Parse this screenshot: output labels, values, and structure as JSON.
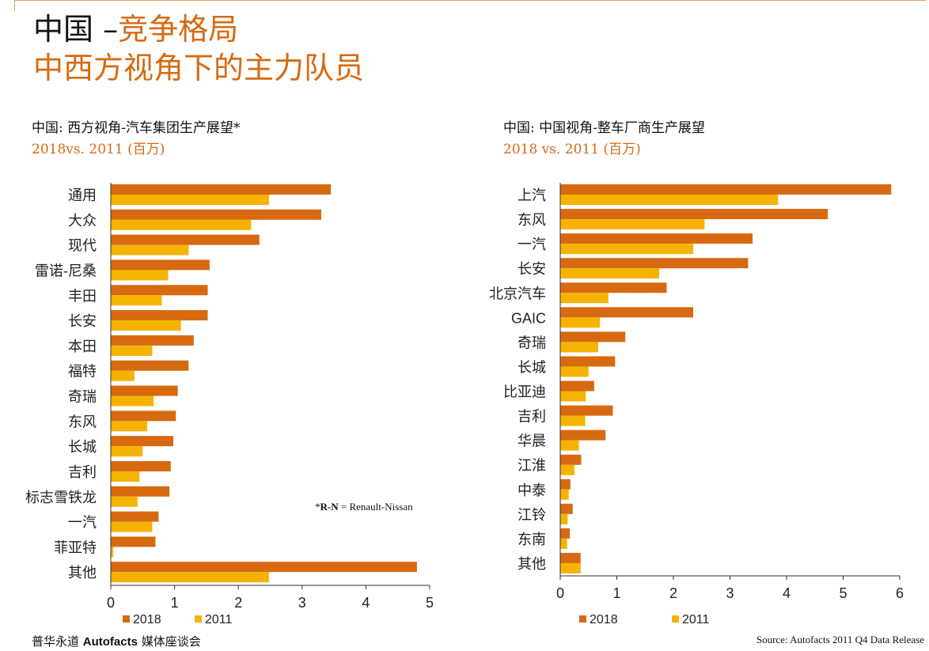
{
  "header": {
    "title_dark": "中国 –",
    "title_accent": "竞争格局",
    "subtitle": "中西方视角下的主力队员"
  },
  "colors": {
    "accent": "#d76a10",
    "series_2018": "#d76a10",
    "series_2011": "#f5b300"
  },
  "chart_data": [
    {
      "type": "bar",
      "orientation": "horizontal",
      "title": "中国: 西方视角-汽车集团生产展望*",
      "subtitle": "2018vs. 2011 (百万)",
      "categories": [
        "通用",
        "大众",
        "现代",
        "雷诺-尼桑",
        "丰田",
        "长安",
        "本田",
        "福特",
        "奇瑞",
        "东风",
        "长城",
        "吉利",
        "标志雪铁龙",
        "一汽",
        "菲亚特",
        "其他"
      ],
      "series": [
        {
          "name": "2018",
          "values": [
            3.45,
            3.3,
            2.33,
            1.55,
            1.52,
            1.52,
            1.3,
            1.22,
            1.05,
            1.02,
            0.98,
            0.94,
            0.92,
            0.75,
            0.7,
            4.8
          ]
        },
        {
          "name": "2011",
          "values": [
            2.48,
            2.2,
            1.22,
            0.9,
            0.8,
            1.1,
            0.65,
            0.37,
            0.67,
            0.57,
            0.5,
            0.45,
            0.42,
            0.65,
            0.04,
            2.48
          ]
        }
      ],
      "xlim": [
        0,
        5
      ],
      "xticks": [
        0,
        1,
        2,
        3,
        4,
        5
      ],
      "legend": "bottom",
      "note_marker": "*",
      "note_bold": "R-N",
      "note_rest": " = Renault-Nissan"
    },
    {
      "type": "bar",
      "orientation": "horizontal",
      "title": "中国: 中国视角-整车厂商生产展望",
      "subtitle": "2018 vs. 2011 (百万)",
      "categories": [
        "上汽",
        "东风",
        "一汽",
        "长安",
        "北京汽车",
        "GAIC",
        "奇瑞",
        "长城",
        "比亚迪",
        "吉利",
        "华晨",
        "江淮",
        "中泰",
        "江铃",
        "东南",
        "其他"
      ],
      "series": [
        {
          "name": "2018",
          "values": [
            5.85,
            4.73,
            3.4,
            3.32,
            1.88,
            2.35,
            1.15,
            0.97,
            0.6,
            0.93,
            0.8,
            0.37,
            0.18,
            0.22,
            0.17,
            0.36
          ]
        },
        {
          "name": "2011",
          "values": [
            3.85,
            2.55,
            2.35,
            1.75,
            0.85,
            0.7,
            0.67,
            0.5,
            0.45,
            0.44,
            0.33,
            0.25,
            0.15,
            0.13,
            0.12,
            0.36
          ]
        }
      ],
      "xlim": [
        0,
        6
      ],
      "xticks": [
        0,
        1,
        2,
        3,
        4,
        5,
        6
      ],
      "legend": "bottom"
    }
  ],
  "footer": {
    "left_prefix": "普华永道 ",
    "left_brand": "Autofacts",
    "left_suffix": " 媒体座谈会",
    "source": "Source: Autofacts 2011 Q4 Data Release"
  }
}
